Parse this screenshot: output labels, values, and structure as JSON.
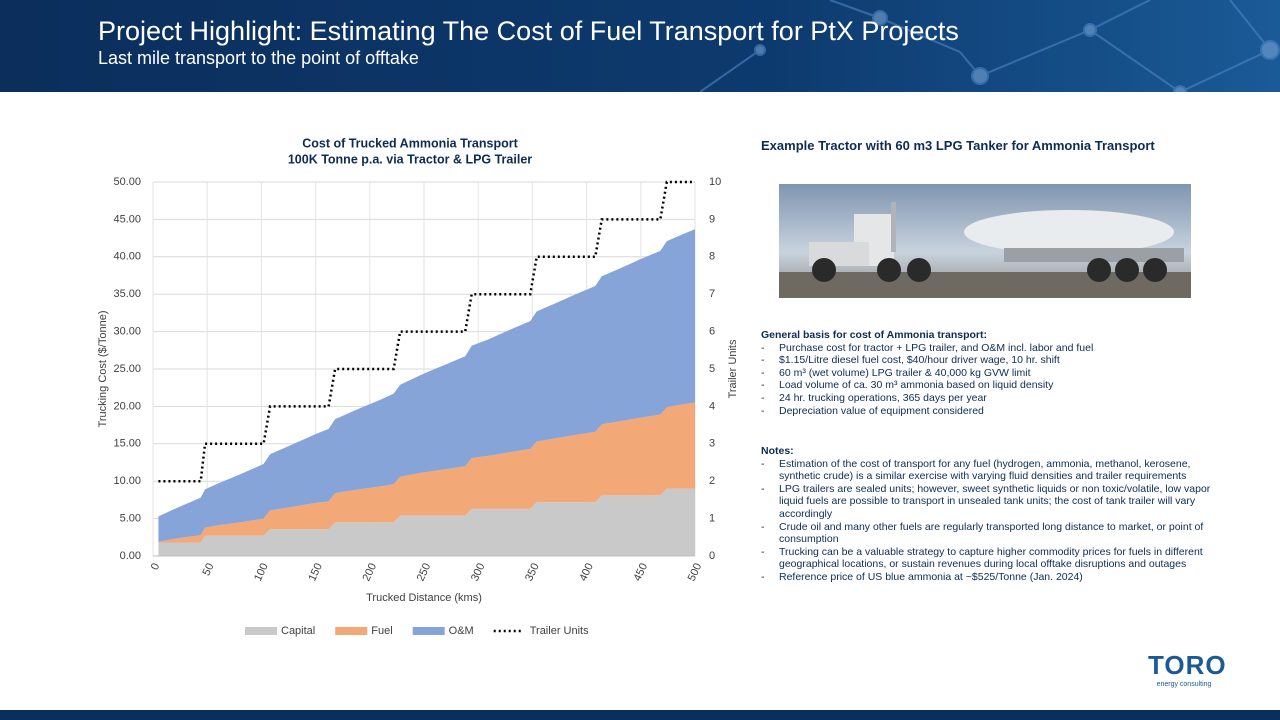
{
  "header": {
    "title": "Project Highlight: Estimating The Cost of Fuel Transport for PtX Projects",
    "subtitle": "Last mile transport to the point of offtake"
  },
  "chart_data": {
    "type": "stacked_area",
    "title": [
      "Cost of Trucked Ammonia Transport",
      "100K Tonne p.a. via Tractor & LPG Trailer"
    ],
    "x_label": "Trucked Distance (kms)",
    "y_label": "Trucking Cost ($/Tonne)",
    "y2_label": "Trailer Units",
    "x": [
      5,
      20,
      44,
      48,
      60,
      80,
      102,
      108,
      130,
      150,
      162,
      168,
      190,
      210,
      222,
      228,
      250,
      270,
      288,
      294,
      310,
      330,
      348,
      354,
      370,
      390,
      408,
      414,
      430,
      450,
      468,
      474,
      490,
      500
    ],
    "series": [
      {
        "name": "Capital",
        "color": "#c9c9c9",
        "values": [
          1.8,
          1.8,
          1.8,
          2.7,
          2.7,
          2.7,
          2.7,
          3.6,
          3.6,
          3.6,
          3.6,
          4.5,
          4.5,
          4.5,
          4.5,
          5.4,
          5.4,
          5.4,
          5.4,
          6.3,
          6.3,
          6.3,
          6.3,
          7.2,
          7.2,
          7.2,
          7.2,
          8.1,
          8.1,
          8.1,
          8.1,
          9.0,
          9.0,
          9.0
        ]
      },
      {
        "name": "Fuel",
        "color": "#f3a877",
        "values": [
          0.1,
          0.5,
          1.0,
          1.1,
          1.4,
          1.8,
          2.3,
          2.5,
          3.0,
          3.5,
          3.7,
          3.9,
          4.4,
          4.8,
          5.1,
          5.2,
          5.8,
          6.2,
          6.6,
          6.8,
          7.1,
          7.6,
          8.0,
          8.1,
          8.5,
          9.0,
          9.4,
          9.5,
          9.9,
          10.4,
          10.8,
          10.9,
          11.3,
          11.5
        ]
      },
      {
        "name": "O&M",
        "color": "#87a4d9",
        "values": [
          3.4,
          4.0,
          5.0,
          5.1,
          5.6,
          6.4,
          7.3,
          7.5,
          8.4,
          9.2,
          9.7,
          9.9,
          10.8,
          11.6,
          12.1,
          12.3,
          13.2,
          14.0,
          14.7,
          15.0,
          15.6,
          16.4,
          17.1,
          17.4,
          18.0,
          18.8,
          19.5,
          19.8,
          20.4,
          21.2,
          21.9,
          22.2,
          22.8,
          23.2
        ]
      },
      {
        "name": "Trailer Units",
        "color": "#000000",
        "axis": "y2",
        "line": true,
        "values": [
          2,
          2,
          2,
          3,
          3,
          3,
          3,
          4,
          4,
          4,
          4,
          5,
          5,
          5,
          5,
          6,
          6,
          6,
          6,
          7,
          7,
          7,
          7,
          8,
          8,
          8,
          8,
          9,
          9,
          9,
          9,
          10,
          10,
          10
        ]
      }
    ],
    "xlim": [
      0,
      500
    ],
    "xticks": [
      0,
      50,
      100,
      150,
      200,
      250,
      300,
      350,
      400,
      450,
      500
    ],
    "ylim": [
      0,
      50
    ],
    "yticks": [
      {
        "value": 0,
        "label": "0.00"
      },
      {
        "value": 5,
        "label": "5.00"
      },
      {
        "value": 10,
        "label": "10.00"
      },
      {
        "value": 15,
        "label": "15.00"
      },
      {
        "value": 20,
        "label": "20.00"
      },
      {
        "value": 25,
        "label": "25.00"
      },
      {
        "value": 30,
        "label": "30.00"
      },
      {
        "value": 35,
        "label": "35.00"
      },
      {
        "value": 40,
        "label": "40.00"
      },
      {
        "value": 45,
        "label": "45.00"
      },
      {
        "value": 50,
        "label": "50.00"
      }
    ],
    "y2lim": [
      0,
      10
    ],
    "y2ticks": [
      0,
      1,
      2,
      3,
      4,
      5,
      6,
      7,
      8,
      9,
      10
    ],
    "grid": true,
    "legend": "bottom"
  },
  "photo": {
    "title": "Example Tractor with 60 m3 LPG Tanker for Ammonia Transport"
  },
  "basis": {
    "heading": "General basis for cost of Ammonia transport:",
    "items": [
      "Purchase cost for tractor + LPG trailer, and O&M incl. labor and fuel",
      "$1.15/Litre diesel fuel cost, $40/hour driver wage, 10 hr. shift",
      "60 m³ (wet volume) LPG trailer & 40,000 kg GVW limit",
      "Load volume of ca. 30 m³ ammonia based on liquid density",
      "24 hr. trucking operations, 365 days per year",
      "Depreciation value of equipment considered"
    ]
  },
  "notes": {
    "heading": "Notes:",
    "items": [
      "Estimation of the cost of transport for any fuel (hydrogen, ammonia, methanol, kerosene, synthetic crude) is a similar exercise with varying fluid densities and trailer requirements",
      "LPG trailers are sealed units; however, sweet synthetic liquids or non toxic/volatile, low vapor liquid fuels are possible to transport in unsealed tank units; the cost of tank trailer will vary accordingly",
      "Crude oil and many other fuels are regularly transported long distance to market, or point of consumption",
      "Trucking can be a valuable strategy to capture higher commodity prices for fuels in different geographical locations, or sustain revenues during local offtake disruptions and outages",
      "Reference price of US blue ammonia at ~$525/Tonne (Jan. 2024)"
    ]
  },
  "logo": {
    "name": "TORO",
    "tagline": "energy consulting"
  }
}
